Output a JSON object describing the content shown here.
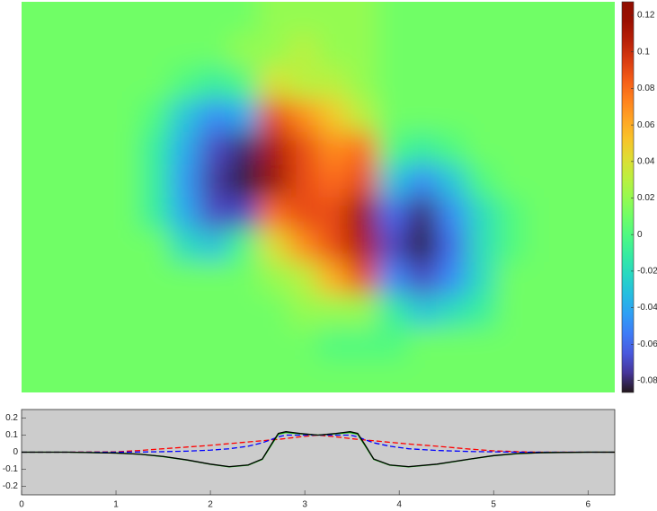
{
  "chart_data": [
    {
      "type": "heatmap",
      "colormap": "turbo",
      "clim": [
        -0.0864,
        0.1274
      ],
      "colorbar_ticks": [
        -0.08,
        -0.06,
        -0.04,
        -0.02,
        0,
        0.02,
        0.04,
        0.06,
        0.08,
        0.1,
        0.12
      ],
      "values": [
        [
          0.01,
          0.01,
          0.01,
          0.01,
          0.01,
          0.01,
          0.01,
          0.01,
          0.02,
          0.02,
          0.02,
          0.02,
          0.01,
          0.01,
          0.01,
          0.01,
          0.01,
          0.01,
          0.01,
          0.01
        ],
        [
          0.01,
          0.01,
          0.01,
          0.01,
          0.01,
          0.01,
          0.01,
          0.02,
          0.02,
          0.03,
          0.02,
          0.02,
          0.01,
          0.01,
          0.01,
          0.01,
          0.01,
          0.01,
          0.01,
          0.01
        ],
        [
          0.01,
          0.01,
          0.01,
          0.01,
          0.01,
          0,
          -0.01,
          0,
          0.04,
          0.03,
          0.03,
          0.02,
          0.01,
          0.01,
          0.01,
          0.01,
          0.01,
          0.01,
          0.01,
          0.01
        ],
        [
          0.01,
          0.01,
          0.01,
          0.01,
          0,
          -0.03,
          -0.05,
          -0.04,
          0.09,
          0.07,
          0.05,
          0.03,
          0.01,
          0.01,
          0.01,
          0.01,
          0.01,
          0.01,
          0.01,
          0.01
        ],
        [
          0.01,
          0.01,
          0.01,
          0.01,
          -0.01,
          -0.04,
          -0.07,
          -0.08,
          0.11,
          0.09,
          0.07,
          0.08,
          0,
          -0.01,
          0,
          0.01,
          0.01,
          0.01,
          0.01,
          0.01
        ],
        [
          0.01,
          0.01,
          0.01,
          0.01,
          -0.01,
          -0.045,
          -0.075,
          -0.085,
          0.12,
          0.09,
          0.08,
          0.09,
          -0.03,
          -0.05,
          -0.03,
          0,
          0.01,
          0.01,
          0.01,
          0.01
        ],
        [
          0.01,
          0.01,
          0.01,
          0.01,
          -0.01,
          -0.04,
          -0.07,
          -0.07,
          0.08,
          0.09,
          0.09,
          0.12,
          -0.06,
          -0.08,
          -0.05,
          -0.02,
          0,
          0.01,
          0.01,
          0.01
        ],
        [
          0.01,
          0.01,
          0.01,
          0.01,
          0.01,
          -0.02,
          -0.03,
          0,
          0.04,
          0.07,
          0.09,
          0.11,
          -0.07,
          -0.085,
          -0.06,
          -0.02,
          0,
          0.01,
          0.01,
          0.01
        ],
        [
          0.01,
          0.01,
          0.01,
          0.01,
          0.01,
          0.01,
          0.01,
          0.01,
          0.02,
          0.03,
          0.06,
          0.09,
          -0.05,
          -0.07,
          -0.05,
          -0.02,
          0.01,
          0.01,
          0.01,
          0.01
        ],
        [
          0.01,
          0.01,
          0.01,
          0.01,
          0.01,
          0.01,
          0.01,
          0.01,
          0.01,
          0.02,
          0.02,
          0.02,
          -0.01,
          -0.03,
          -0.02,
          -0.01,
          0.01,
          0.01,
          0.01,
          0.01
        ],
        [
          0.01,
          0.01,
          0.01,
          0.01,
          0.01,
          0.01,
          0.01,
          0.01,
          0.01,
          0.01,
          0,
          0,
          0,
          0.01,
          0.01,
          0.01,
          0.01,
          0.01,
          0.01,
          0.01
        ],
        [
          0.01,
          0.01,
          0.01,
          0.01,
          0.01,
          0.01,
          0.01,
          0.01,
          0.01,
          0.01,
          0.01,
          0.01,
          0.01,
          0.01,
          0.01,
          0.01,
          0.01,
          0.01,
          0.01,
          0.01
        ]
      ]
    },
    {
      "type": "line",
      "background": "#cccccc",
      "xlim": [
        0,
        6.2832
      ],
      "xticks": [
        0,
        1,
        2,
        3,
        4,
        5,
        6
      ],
      "ylim": [
        -0.25,
        0.25
      ],
      "yticks": [
        -0.2,
        -0.1,
        0,
        0.1,
        0.2
      ],
      "x": [
        0,
        0.5,
        1,
        1.25,
        1.5,
        1.75,
        2,
        2.2,
        2.4,
        2.55,
        2.65,
        2.72,
        2.8,
        2.95,
        3.14,
        3.33,
        3.48,
        3.56,
        3.63,
        3.73,
        3.9,
        4.1,
        4.4,
        4.75,
        5.0,
        5.25,
        5.5,
        6,
        6.2832
      ],
      "series": [
        {
          "color": "#ff0000",
          "linestyle": "--",
          "values": [
            0,
            0,
            0.002,
            0.01,
            0.02,
            0.03,
            0.04,
            0.05,
            0.06,
            0.067,
            0.072,
            0.075,
            0.08,
            0.09,
            0.1,
            0.09,
            0.08,
            0.075,
            0.072,
            0.067,
            0.058,
            0.048,
            0.035,
            0.018,
            0.008,
            0.003,
            0,
            0,
            0
          ]
        },
        {
          "color": "#0000ff",
          "linestyle": "--",
          "values": [
            0,
            0,
            0,
            0.001,
            0.003,
            0.006,
            0.012,
            0.02,
            0.035,
            0.055,
            0.075,
            0.09,
            0.1,
            0.1,
            0.1,
            0.1,
            0.1,
            0.09,
            0.075,
            0.055,
            0.035,
            0.02,
            0.01,
            0.004,
            0.002,
            0,
            0,
            0,
            0
          ]
        },
        {
          "color": "#00c000",
          "linestyle": "-",
          "values": [
            0,
            0,
            -0.005,
            -0.012,
            -0.026,
            -0.046,
            -0.071,
            -0.086,
            -0.076,
            -0.042,
            0.045,
            0.105,
            0.115,
            0.108,
            0.1,
            0.108,
            0.115,
            0.105,
            0.045,
            -0.042,
            -0.076,
            -0.086,
            -0.071,
            -0.041,
            -0.021,
            -0.009,
            -0.003,
            0,
            0
          ]
        },
        {
          "color": "#000000",
          "linestyle": "-",
          "values": [
            0,
            0,
            -0.005,
            -0.012,
            -0.025,
            -0.045,
            -0.07,
            -0.085,
            -0.075,
            -0.04,
            0.05,
            0.11,
            0.12,
            0.11,
            0.1,
            0.11,
            0.12,
            0.11,
            0.05,
            -0.04,
            -0.075,
            -0.085,
            -0.07,
            -0.04,
            -0.02,
            -0.008,
            -0.003,
            0,
            0
          ]
        }
      ]
    }
  ]
}
